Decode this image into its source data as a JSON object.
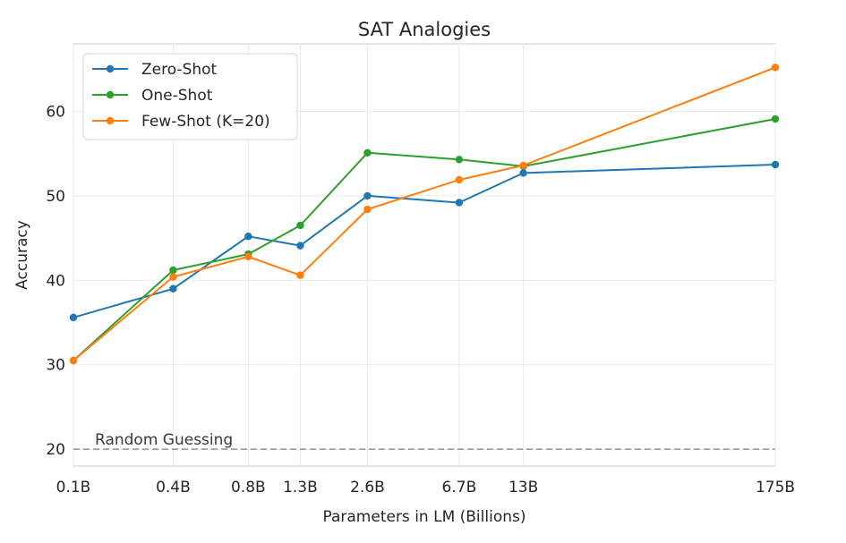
{
  "chart_data": {
    "type": "line",
    "title": "SAT Analogies",
    "xlabel": "Parameters in LM (Billions)",
    "ylabel": "Accuracy",
    "categories": [
      "0.1B",
      "0.4B",
      "0.8B",
      "1.3B",
      "2.6B",
      "6.7B",
      "13B",
      "175B"
    ],
    "x": [
      0.125,
      0.35,
      0.76,
      1.3,
      2.6,
      6.7,
      13,
      175
    ],
    "x_scale": "log",
    "ylim": [
      18,
      68
    ],
    "yticks": [
      20,
      30,
      40,
      50,
      60
    ],
    "grid": true,
    "legend_position": "top-left",
    "series": [
      {
        "name": "Zero-Shot",
        "color": "#1f77b4",
        "values": [
          35.6,
          39.0,
          45.2,
          44.1,
          50.0,
          49.2,
          52.7,
          53.7
        ]
      },
      {
        "name": "One-Shot",
        "color": "#2ca02c",
        "values": [
          30.5,
          41.2,
          43.1,
          46.5,
          55.1,
          54.3,
          53.5,
          59.1
        ]
      },
      {
        "name": "Few-Shot (K=20)",
        "color": "#ff7f0e",
        "values": [
          30.5,
          40.4,
          42.8,
          40.6,
          48.4,
          51.9,
          53.6,
          65.2
        ]
      }
    ],
    "reference_line": {
      "label": "Random Guessing",
      "value": 20,
      "color": "#a0a0a0",
      "style": "dashed"
    }
  }
}
